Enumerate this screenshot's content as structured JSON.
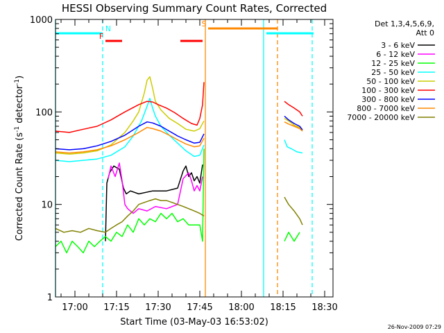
{
  "chart_data": {
    "type": "line",
    "title": "HESSI Observing Summary Count Rates, Corrected",
    "xlabel": "Start Time (03-May-03 16:53:02)",
    "ylabel_parts": {
      "base": "Corrected Count Rate (s",
      "sup1": "-1",
      "mid": " detector",
      "sup2": "-1",
      "end": ")"
    },
    "y_scale": "log",
    "ylim": [
      1,
      1000
    ],
    "xlim_minutes": [
      0,
      100
    ],
    "x_ticks": [
      {
        "m": 7,
        "label": "17:00"
      },
      {
        "m": 22,
        "label": "17:15"
      },
      {
        "m": 37,
        "label": "17:30"
      },
      {
        "m": 52,
        "label": "17:45"
      },
      {
        "m": 67,
        "label": "18:00"
      },
      {
        "m": 82,
        "label": "18:15"
      },
      {
        "m": 97,
        "label": "18:30"
      }
    ],
    "y_ticks": [
      {
        "v": 1,
        "label": "1"
      },
      {
        "v": 10,
        "label": "10"
      },
      {
        "v": 100,
        "label": "100"
      },
      {
        "v": 1000,
        "label": "1000"
      }
    ],
    "legend_header": [
      "Det 1,3,4,5,6,9,",
      "Att 0"
    ],
    "timestamp": "26-Nov-2009 07:29",
    "series": [
      {
        "name": "3 - 6 keV",
        "color": "#000000",
        "segments": [
          {
            "x": [
              18,
              18.5,
              19.5,
              21,
              23,
              24.5,
              25.5,
              27,
              30,
              35,
              40,
              44,
              46,
              47,
              48,
              49,
              50,
              51,
              52,
              53
            ],
            "y": [
              4,
              17,
              22,
              26,
              24,
              15,
              13,
              14,
              13,
              14,
              14,
              15,
              23,
              26,
              20,
              22,
              18,
              20,
              17,
              27
            ]
          }
        ]
      },
      {
        "name": "6 - 12 keV",
        "color": "#ff00ff",
        "segments": [
          {
            "x": [
              19,
              20,
              21.5,
              23,
              24,
              25,
              26,
              28,
              30,
              33,
              36,
              40,
              44,
              46,
              48,
              49,
              50,
              51,
              52,
              53
            ],
            "y": [
              19,
              26,
              20,
              28,
              18,
              10,
              9,
              8,
              9,
              8.5,
              9.5,
              9,
              10,
              19,
              22,
              18,
              14,
              16,
              14,
              20
            ]
          }
        ]
      },
      {
        "name": "12 - 25 keV",
        "color": "#00ff00",
        "segments": [
          {
            "x": [
              0,
              2,
              4,
              6,
              8,
              10,
              12,
              14,
              16,
              18,
              20,
              22,
              24,
              26,
              28,
              30,
              32,
              34,
              36,
              38,
              40,
              42,
              44,
              46,
              48,
              50,
              52,
              53,
              53.5
            ],
            "y": [
              3.5,
              4,
              3,
              4,
              3.5,
              3,
              4,
              3.5,
              4,
              4.5,
              4,
              5,
              4.5,
              6,
              5,
              7,
              6,
              7,
              6.5,
              8,
              7,
              8,
              6.5,
              7,
              6,
              6,
              6,
              4,
              40
            ]
          },
          {
            "x": [
              82.5,
              84,
              86,
              88
            ],
            "y": [
              4,
              5,
              4,
              5
            ]
          }
        ]
      },
      {
        "name": "25 - 50 keV",
        "color": "#00ffff",
        "segments": [
          {
            "x": [
              0,
              5,
              10,
              15,
              20,
              25,
              28,
              31,
              33,
              34,
              35,
              36,
              38,
              41,
              44,
              47,
              50,
              52,
              53.5
            ],
            "y": [
              30,
              29,
              30,
              31,
              34,
              42,
              55,
              80,
              115,
              140,
              110,
              90,
              70,
              56,
              46,
              38,
              33,
              34,
              44
            ]
          },
          {
            "x": [
              82.5,
              83.5,
              85,
              87,
              89
            ],
            "y": [
              50,
              42,
              40,
              37,
              36
            ]
          }
        ]
      },
      {
        "name": "50 - 100 keV",
        "color": "#cccc00",
        "segments": [
          {
            "x": [
              0,
              5,
              10,
              15,
              20,
              25,
              28,
              30,
              32,
              33,
              34,
              35,
              36,
              38,
              41,
              44,
              47,
              50,
              52,
              53.5
            ],
            "y": [
              36,
              35,
              36,
              38,
              44,
              60,
              80,
              100,
              160,
              220,
              240,
              180,
              130,
              105,
              85,
              75,
              65,
              62,
              66,
              80
            ]
          },
          {
            "x": [
              82.5,
              84,
              86,
              88,
              89
            ],
            "y": [
              85,
              80,
              72,
              68,
              62
            ]
          }
        ]
      },
      {
        "name": "100 - 300 keV",
        "color": "#ff0000",
        "segments": [
          {
            "x": [
              0,
              5,
              10,
              15,
              20,
              25,
              30,
              33,
              35,
              37,
              40,
              43,
              46,
              49,
              51,
              52,
              53,
              53.5
            ],
            "y": [
              62,
              60,
              65,
              70,
              82,
              100,
              120,
              130,
              128,
              120,
              110,
              98,
              85,
              75,
              72,
              85,
              120,
              210
            ]
          },
          {
            "x": [
              82.5,
              84,
              86,
              88,
              89
            ],
            "y": [
              130,
              120,
              110,
              100,
              90
            ]
          }
        ]
      },
      {
        "name": "300 - 800 keV",
        "color": "#0000ff",
        "segments": [
          {
            "x": [
              0,
              5,
              10,
              15,
              20,
              25,
              30,
              33,
              35,
              38,
              41,
              44,
              47,
              50,
              52,
              53.5
            ],
            "y": [
              40,
              39,
              40,
              43,
              48,
              56,
              70,
              78,
              76,
              70,
              62,
              55,
              50,
              46,
              47,
              58
            ]
          },
          {
            "x": [
              82.5,
              84,
              86,
              88,
              89
            ],
            "y": [
              90,
              82,
              75,
              70,
              64
            ]
          }
        ]
      },
      {
        "name": "800 - 7000 keV",
        "color": "#ff8800",
        "segments": [
          {
            "x": [
              0,
              5,
              10,
              15,
              20,
              25,
              30,
              33,
              35,
              38,
              41,
              44,
              47,
              50,
              52,
              53.5
            ],
            "y": [
              37,
              36,
              37,
              39,
              43,
              50,
              60,
              68,
              66,
              62,
              56,
              50,
              45,
              42,
              43,
              52
            ]
          },
          {
            "x": [
              82.5,
              84,
              86,
              88,
              89
            ],
            "y": [
              78,
              74,
              70,
              66,
              62
            ]
          }
        ]
      },
      {
        "name": "7000 - 20000 keV",
        "color": "#808000",
        "segments": [
          {
            "x": [
              0,
              3,
              6,
              9,
              12,
              15,
              18,
              20,
              22,
              24,
              26,
              28,
              30,
              32,
              34,
              36,
              38,
              40,
              42,
              44,
              46,
              48,
              50,
              52,
              53.5
            ],
            "y": [
              5.5,
              5,
              5.2,
              5,
              5.5,
              5.2,
              5,
              5.5,
              6,
              6.5,
              7.5,
              8.5,
              10,
              10.5,
              11,
              11.5,
              11,
              11,
              10.5,
              10,
              9.5,
              9,
              8.5,
              8,
              7.5
            ]
          },
          {
            "x": [
              82.5,
              84,
              86,
              88,
              89
            ],
            "y": [
              12,
              10,
              8.5,
              7,
              6
            ]
          }
        ]
      }
    ],
    "flags": [
      {
        "label": "N",
        "color": "#00ffff",
        "label_at": 19,
        "bars": [
          [
            0,
            17
          ],
          [
            76,
            93
          ]
        ]
      },
      {
        "label": "F",
        "color": "#ff0000",
        "label_at": 16.5,
        "bars": [
          [
            18,
            24
          ],
          [
            45,
            53
          ]
        ]
      },
      {
        "label": "S",
        "color": "#ff8800",
        "label_at": 53.5,
        "bars": [
          [
            55,
            80
          ]
        ]
      }
    ],
    "vertical_lines": [
      {
        "m": 0,
        "color": "#00ffff",
        "dash": false
      },
      {
        "m": 17,
        "color": "#00ffff",
        "dash": true
      },
      {
        "m": 54,
        "color": "#ff8800",
        "dash": false
      },
      {
        "m": 75,
        "color": "#00ffff",
        "dash": false
      },
      {
        "m": 80,
        "color": "#ff8800",
        "dash": true
      },
      {
        "m": 92.5,
        "color": "#00ffff",
        "dash": true
      }
    ]
  }
}
